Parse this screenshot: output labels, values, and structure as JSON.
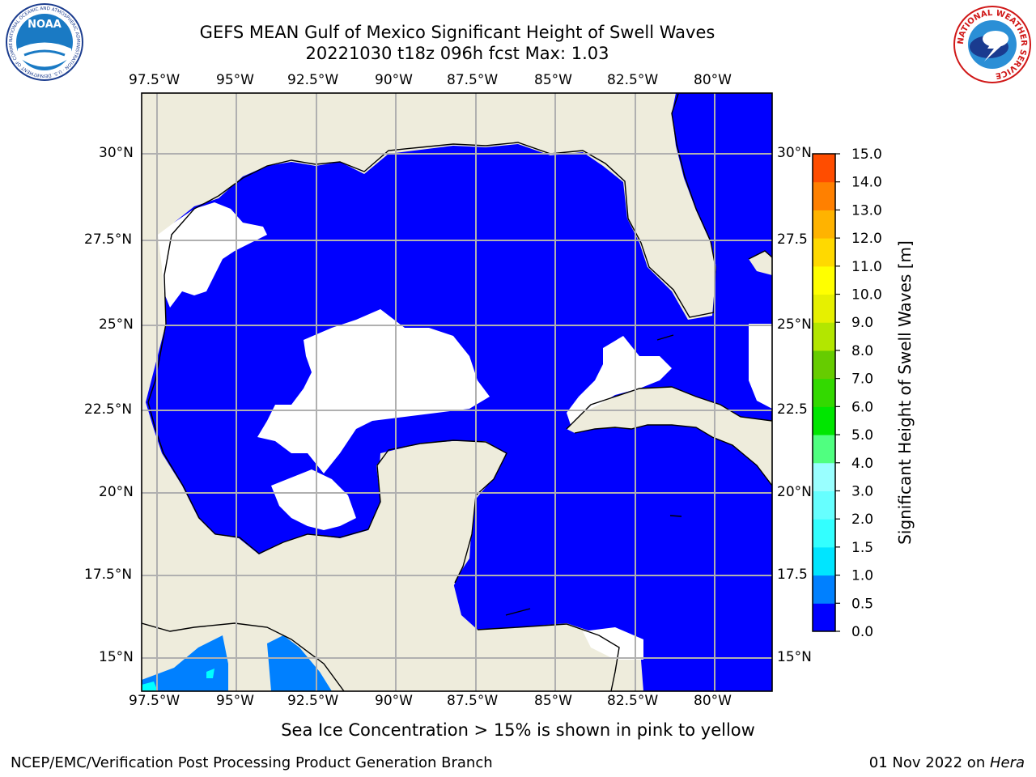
{
  "header": {
    "title_line1": "GEFS MEAN Gulf of Mexico Significant Height of Swell Waves",
    "title_line2": "20221030 t18z 096h fcst   Max: 1.03"
  },
  "logos": {
    "noaa_text": "NOAA",
    "noaa_ring_text": "NATIONAL OCEANIC AND ATMOSPHERIC ADMINISTRATION · U.S. DEPARTMENT OF COMMERCE",
    "nws_ring_text": "NATIONAL WEATHER SERVICE"
  },
  "map": {
    "lon_labels": [
      "97.5°W",
      "95°W",
      "92.5°W",
      "90°W",
      "87.5°W",
      "85°W",
      "82.5°W",
      "80°W"
    ],
    "lat_labels_left": [
      "30°N",
      "27.5°N",
      "25°N",
      "22.5°N",
      "20°N",
      "17.5°N",
      "15°N"
    ],
    "lat_labels_right": [
      "30°N",
      "27.5",
      "25°N",
      "22.5",
      "20°N",
      "17.5",
      "15°N"
    ],
    "colors": {
      "land": "#eeecdc",
      "sea_low": "#0000ff",
      "sea_mid": "#0080ff",
      "sea_high": "#00ffff",
      "no_data": "#ffffff",
      "grid": "#b0b0b0"
    }
  },
  "colorbar": {
    "label": "Significant Height of Swell Waves [m]",
    "ticks": [
      "0.0",
      "0.5",
      "1.0",
      "1.5",
      "2.0",
      "3.0",
      "4.0",
      "5.0",
      "6.0",
      "7.0",
      "8.0",
      "9.0",
      "10.0",
      "11.0",
      "12.0",
      "13.0",
      "14.0",
      "15.0"
    ],
    "colors": [
      "#0000ff",
      "#0080ff",
      "#00e5ff",
      "#33ffff",
      "#66ffff",
      "#99ffff",
      "#50ff80",
      "#00e600",
      "#33d900",
      "#66cc00",
      "#b3e600",
      "#e6f000",
      "#ffff00",
      "#ffd900",
      "#ffb300",
      "#ff8000",
      "#ff4d00",
      "#ff1a00",
      "#ff0000"
    ]
  },
  "caption": "Sea Ice Concentration > 15% is shown in pink to yellow",
  "footer": {
    "left": "NCEP/EMC/Verification Post Processing Product Generation Branch",
    "right_date": "01 Nov 2022 on ",
    "right_host": "Hera"
  }
}
